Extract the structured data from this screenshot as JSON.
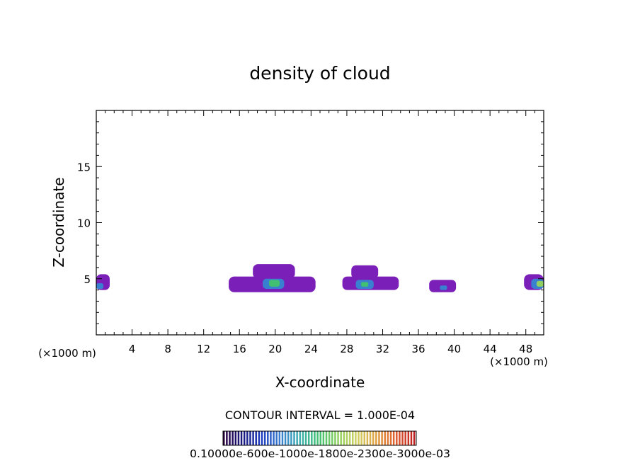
{
  "chart_data": {
    "type": "heatmap",
    "title": "density of cloud",
    "xlabel": "X-coordinate",
    "ylabel": "Z-coordinate",
    "x_unit_left": "(×1000 m)",
    "x_unit_right": "(×1000 m)",
    "xlim": [
      0,
      50
    ],
    "ylim": [
      0,
      20
    ],
    "xticks": [
      4,
      8,
      12,
      16,
      20,
      24,
      28,
      32,
      36,
      40,
      44,
      48
    ],
    "yticks": [
      5,
      10,
      15
    ],
    "contour_interval": "CONTOUR INTERVAL = 1.000E-04",
    "colorbar_labels": "0.10000e-600e-1000e-1800e-2300e-3000e-03",
    "colorbar_colors": [
      "#2a0040",
      "#1a1a80",
      "#2040c0",
      "#3a80d0",
      "#40b0b0",
      "#40c070",
      "#90d060",
      "#d0d060",
      "#e0a040",
      "#e06030",
      "#c02020"
    ],
    "cells": [
      {
        "x": [
          0,
          1.5
        ],
        "z": [
          4.0,
          5.4
        ],
        "level": 1
      },
      {
        "x": [
          0,
          0.8
        ],
        "z": [
          4.1,
          4.6
        ],
        "level": 3
      },
      {
        "x": [
          14.8,
          24.5
        ],
        "z": [
          3.8,
          5.2
        ],
        "level": 1
      },
      {
        "x": [
          17.5,
          22.2
        ],
        "z": [
          5.0,
          6.3
        ],
        "level": 1
      },
      {
        "x": [
          18.6,
          21.0
        ],
        "z": [
          4.1,
          5.0
        ],
        "level": 3
      },
      {
        "x": [
          19.3,
          20.5
        ],
        "z": [
          4.3,
          4.9
        ],
        "level": 5
      },
      {
        "x": [
          27.5,
          33.8
        ],
        "z": [
          4.0,
          5.2
        ],
        "level": 1
      },
      {
        "x": [
          28.5,
          31.5
        ],
        "z": [
          5.0,
          6.2
        ],
        "level": 1
      },
      {
        "x": [
          29.0,
          31.0
        ],
        "z": [
          4.1,
          4.9
        ],
        "level": 3
      },
      {
        "x": [
          29.6,
          30.4
        ],
        "z": [
          4.3,
          4.7
        ],
        "level": 5
      },
      {
        "x": [
          37.2,
          40.2
        ],
        "z": [
          3.8,
          4.9
        ],
        "level": 1
      },
      {
        "x": [
          38.4,
          39.2
        ],
        "z": [
          4.0,
          4.4
        ],
        "level": 3
      },
      {
        "x": [
          47.8,
          50.0
        ],
        "z": [
          4.0,
          5.4
        ],
        "level": 1
      },
      {
        "x": [
          48.6,
          50.0
        ],
        "z": [
          4.1,
          5.0
        ],
        "level": 3
      },
      {
        "x": [
          49.2,
          50.0
        ],
        "z": [
          4.3,
          4.8
        ],
        "level": 6
      }
    ]
  }
}
